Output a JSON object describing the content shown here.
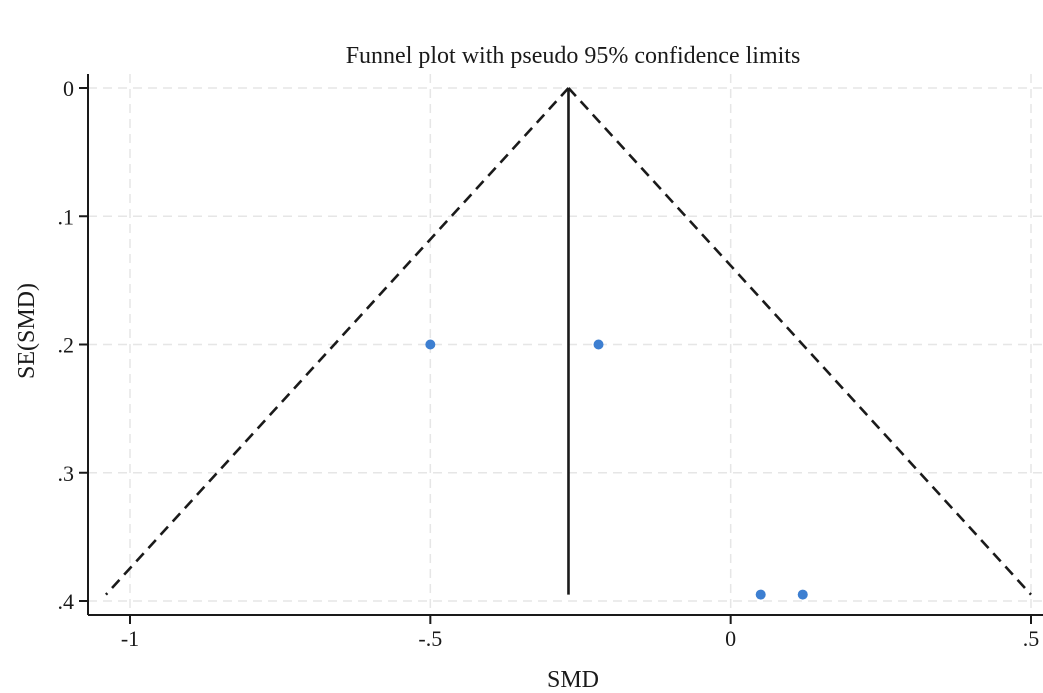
{
  "chart_data": {
    "type": "scatter",
    "title": "Funnel plot with pseudo 95% confidence limits",
    "xlabel": "SMD",
    "ylabel": "SE(SMD)",
    "xlim": [
      -1.04,
      0.52
    ],
    "ylim": [
      0,
      0.41
    ],
    "y_axis_inverted": true,
    "grid": true,
    "xticks": [
      {
        "value": -1,
        "label": "-1"
      },
      {
        "value": -0.5,
        "label": "-.5"
      },
      {
        "value": 0,
        "label": "0"
      },
      {
        "value": 0.5,
        "label": ".5"
      }
    ],
    "yticks": [
      {
        "value": 0,
        "label": "0"
      },
      {
        "value": 0.1,
        "label": ".1"
      },
      {
        "value": 0.2,
        "label": ".2"
      },
      {
        "value": 0.3,
        "label": ".3"
      },
      {
        "value": 0.4,
        "label": ".4"
      }
    ],
    "pooled_effect": -0.27,
    "pseudo_ci_limits": {
      "apex": {
        "x": -0.27,
        "y": 0
      },
      "left_base": {
        "x": -1.04,
        "y": 0.395
      },
      "right_base": {
        "x": 0.5,
        "y": 0.395
      }
    },
    "effect_line": {
      "x": -0.27,
      "y_from": 0,
      "y_to": 0.395
    },
    "points": [
      {
        "x": -0.5,
        "y": 0.2
      },
      {
        "x": -0.22,
        "y": 0.2
      },
      {
        "x": 0.05,
        "y": 0.395
      },
      {
        "x": 0.12,
        "y": 0.395
      }
    ],
    "point_color": "#3d7fd1",
    "line_color": "#1a1a1a"
  }
}
